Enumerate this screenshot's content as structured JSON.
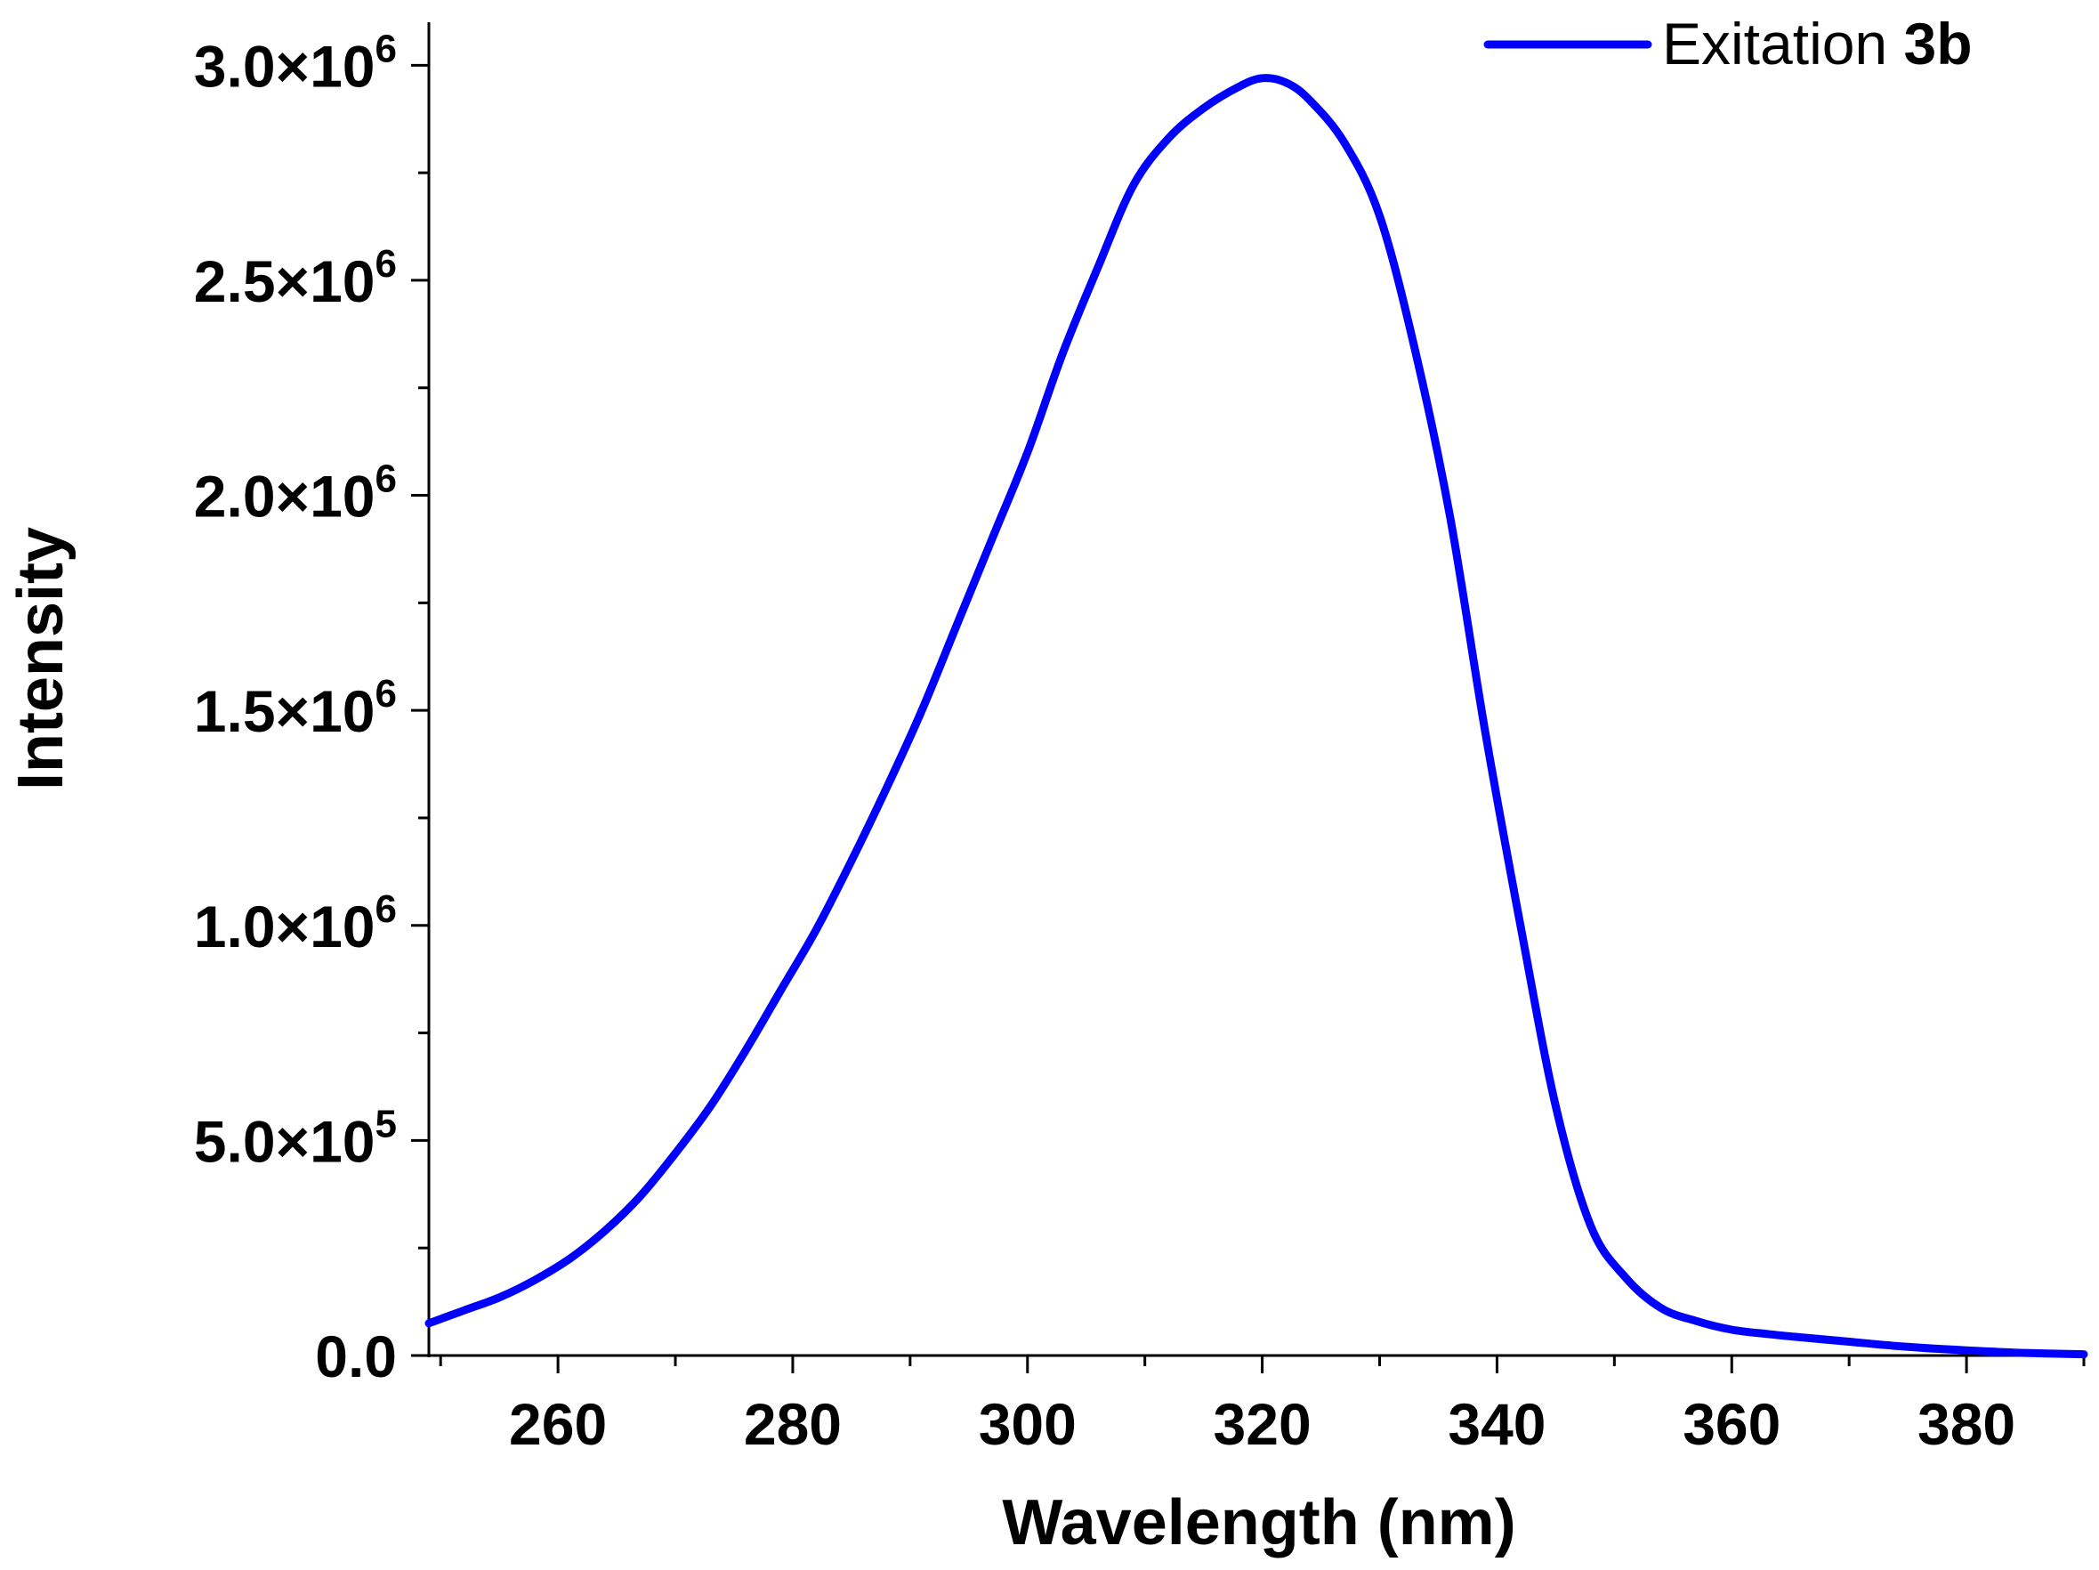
{
  "chart_data": {
    "type": "line",
    "xlabel": "Wavelength (nm)",
    "ylabel": "Intensity",
    "xlim": [
      249,
      390
    ],
    "ylim": [
      0,
      3100000
    ],
    "x_ticks": [
      260,
      280,
      300,
      320,
      340,
      360,
      380
    ],
    "y_ticks": [
      {
        "value": 0,
        "mantissa": "0.0",
        "exponent": ""
      },
      {
        "value": 500000,
        "mantissa": "5.0×10",
        "exponent": "5"
      },
      {
        "value": 1000000,
        "mantissa": "1.0×10",
        "exponent": "6"
      },
      {
        "value": 1500000,
        "mantissa": "1.5×10",
        "exponent": "6"
      },
      {
        "value": 2000000,
        "mantissa": "2.0×10",
        "exponent": "6"
      },
      {
        "value": 2500000,
        "mantissa": "2.5×10",
        "exponent": "6"
      },
      {
        "value": 3000000,
        "mantissa": "3.0×10",
        "exponent": "6"
      }
    ],
    "legend": {
      "placement": "top-right",
      "label_prefix": "Exitation ",
      "label_bold": "3b"
    },
    "grid": false,
    "series": [
      {
        "name": "Exitation 3b",
        "color": "#0000ff",
        "x": [
          249,
          252,
          255,
          258,
          261,
          264,
          267,
          270,
          273,
          276,
          279,
          282,
          285,
          288,
          291,
          294,
          297,
          300,
          303,
          306,
          309,
          312,
          315,
          318,
          320,
          322,
          324,
          327,
          330,
          333,
          336,
          339,
          342,
          345,
          348,
          351,
          354,
          357,
          360,
          363,
          366,
          370,
          375,
          380,
          385,
          390
        ],
        "y": [
          75000,
          105000,
          135000,
          175000,
          225000,
          290000,
          370000,
          470000,
          580000,
          710000,
          850000,
          990000,
          1150000,
          1320000,
          1500000,
          1700000,
          1900000,
          2100000,
          2330000,
          2530000,
          2720000,
          2830000,
          2900000,
          2950000,
          2970000,
          2960000,
          2920000,
          2820000,
          2650000,
          2340000,
          1950000,
          1450000,
          1000000,
          580000,
          300000,
          180000,
          110000,
          80000,
          60000,
          50000,
          42000,
          32000,
          20000,
          12000,
          6000,
          3000
        ]
      }
    ]
  }
}
